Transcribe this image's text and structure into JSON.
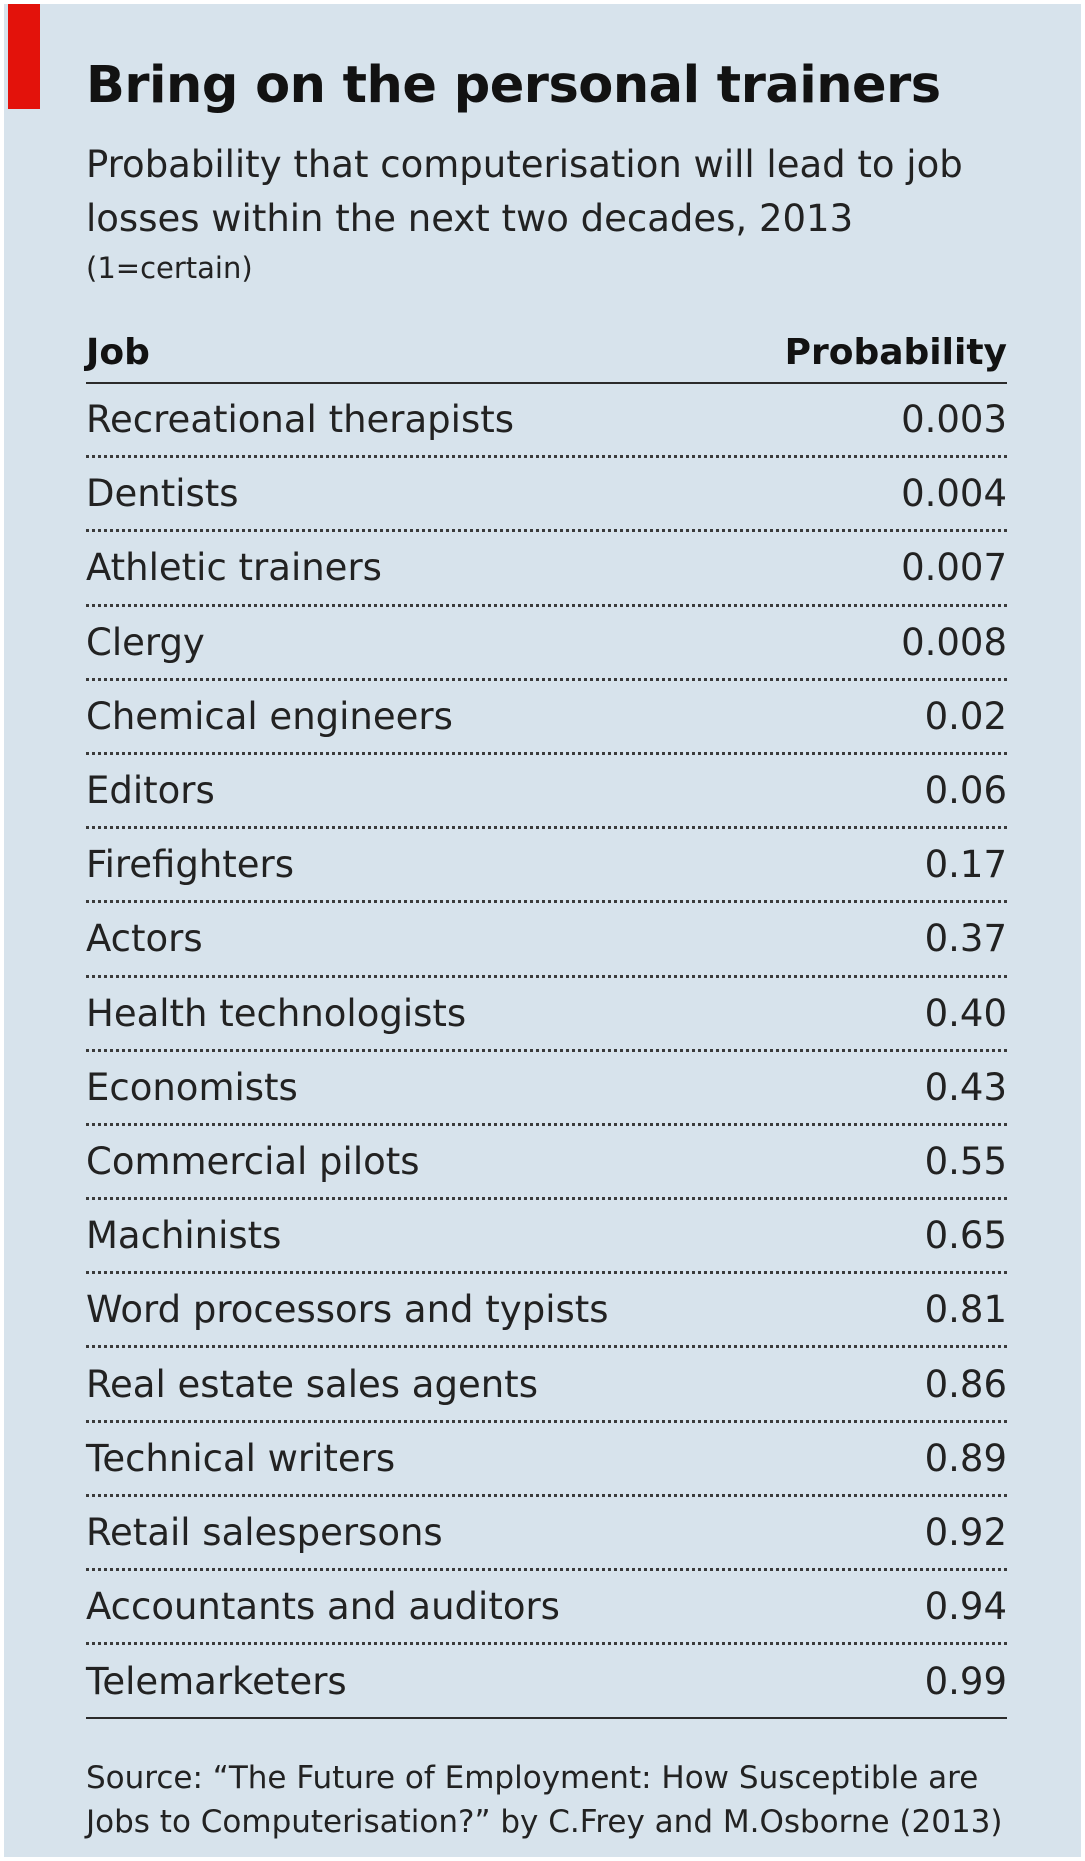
{
  "header": {
    "title": "Bring on the personal trainers",
    "subtitle": "Probability that computerisation will lead to job losses within the next two decades, 2013",
    "note": "(1=certain)"
  },
  "source": "Source: “The Future of Employment: How Susceptible are Jobs to Computerisation?” by C.Frey and M.Osborne (2013)",
  "chart_data": {
    "type": "table",
    "title": "Bring on the personal trainers",
    "subtitle": "Probability that computerisation will lead to job losses within the next two decades, 2013",
    "columns": [
      "Job",
      "Probability"
    ],
    "rows": [
      {
        "job": "Recreational therapists",
        "probability": "0.003"
      },
      {
        "job": "Dentists",
        "probability": "0.004"
      },
      {
        "job": "Athletic trainers",
        "probability": "0.007"
      },
      {
        "job": "Clergy",
        "probability": "0.008"
      },
      {
        "job": "Chemical engineers",
        "probability": "0.02"
      },
      {
        "job": "Editors",
        "probability": "0.06"
      },
      {
        "job": "Firefighters",
        "probability": "0.17"
      },
      {
        "job": "Actors",
        "probability": "0.37"
      },
      {
        "job": "Health technologists",
        "probability": "0.40"
      },
      {
        "job": "Economists",
        "probability": "0.43"
      },
      {
        "job": "Commercial pilots",
        "probability": "0.55"
      },
      {
        "job": "Machinists",
        "probability": "0.65"
      },
      {
        "job": "Word processors and typists",
        "probability": "0.81"
      },
      {
        "job": "Real estate sales agents",
        "probability": "0.86"
      },
      {
        "job": "Technical writers",
        "probability": "0.89"
      },
      {
        "job": "Retail salespersons",
        "probability": "0.92"
      },
      {
        "job": "Accountants and auditors",
        "probability": "0.94"
      },
      {
        "job": "Telemarketers",
        "probability": "0.99"
      }
    ]
  },
  "colors": {
    "background": "#d7e3ec",
    "accent": "#e3120b",
    "text": "#222222"
  }
}
